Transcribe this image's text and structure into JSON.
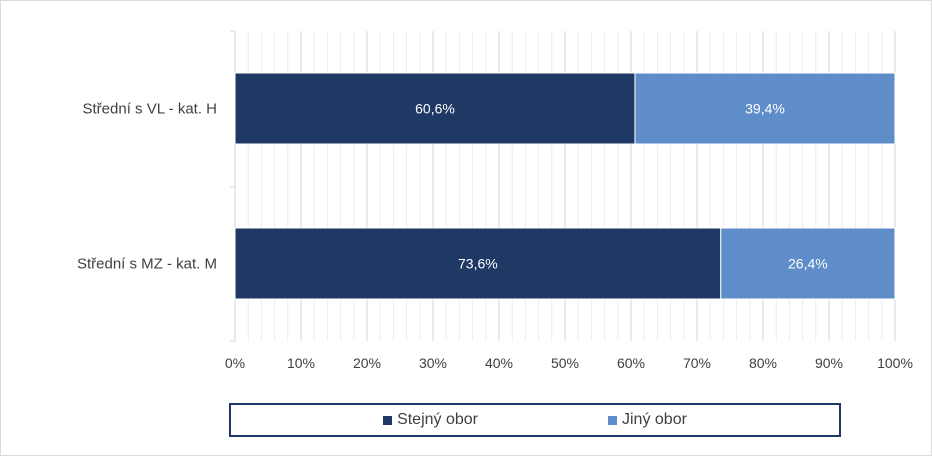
{
  "chart_data": {
    "type": "bar",
    "orientation": "horizontal",
    "stacked": "percent",
    "categories": [
      "Střední s VL - kat. H",
      "Střední s MZ - kat. M"
    ],
    "series": [
      {
        "name": "Stejný obor",
        "values": [
          60.6,
          73.6
        ],
        "labels": [
          "60,6%",
          "73,6%"
        ],
        "color": "#1f3864"
      },
      {
        "name": "Jiný obor",
        "values": [
          39.4,
          26.4
        ],
        "labels": [
          "39,4%",
          "26,4%"
        ],
        "color": "#5f8dc9"
      }
    ],
    "xlim": [
      0,
      100
    ],
    "x_ticks": [
      "0%",
      "10%",
      "20%",
      "30%",
      "40%",
      "50%",
      "60%",
      "70%",
      "80%",
      "90%",
      "100%"
    ],
    "grid": "vertical",
    "legend": "bottom"
  }
}
